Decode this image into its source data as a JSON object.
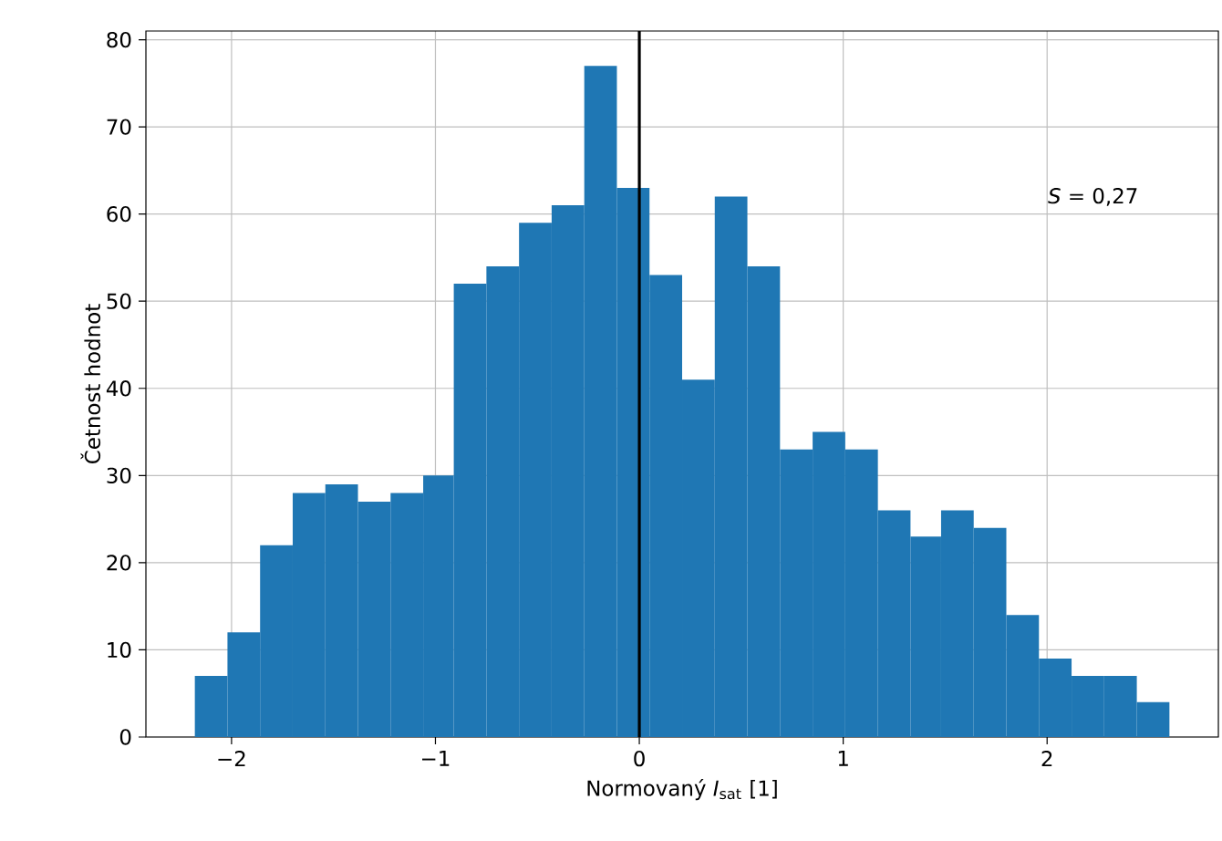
{
  "chart_data": {
    "type": "histogram",
    "xlabel": "Normovaný *I*$_{sat}$ [1]",
    "ylabel": "Četnost hodnot",
    "bins": [
      -2.18,
      -2.02,
      -1.86,
      -1.7,
      -1.54,
      -1.38,
      -1.22,
      -1.06,
      -0.91,
      -0.75,
      -0.59,
      -0.43,
      -0.27,
      -0.11,
      0.05,
      0.21,
      0.37,
      0.53,
      0.69,
      0.85,
      1.01,
      1.17,
      1.33,
      1.48,
      1.64,
      1.8,
      1.96,
      2.12,
      2.28,
      2.44,
      2.6
    ],
    "values": [
      7,
      12,
      22,
      28,
      29,
      27,
      28,
      30,
      52,
      54,
      59,
      61,
      77,
      63,
      53,
      41,
      62,
      54,
      33,
      35,
      33,
      26,
      23,
      26,
      24,
      14,
      9,
      7,
      7,
      4
    ],
    "color": "#1f77b4",
    "xlim": [
      -2.42,
      2.84
    ],
    "ylim": [
      0,
      81
    ],
    "xticks": [
      {
        "value": -2,
        "label": "−2"
      },
      {
        "value": -1,
        "label": "−1"
      },
      0,
      1,
      2
    ],
    "yticks": [
      0,
      10,
      20,
      30,
      40,
      50,
      60,
      70,
      80
    ],
    "grid": true,
    "ref_lines": [
      {
        "axis": "x",
        "value": 0,
        "color": "#000000"
      }
    ],
    "annotations": [
      "*S* = 0,27"
    ]
  }
}
